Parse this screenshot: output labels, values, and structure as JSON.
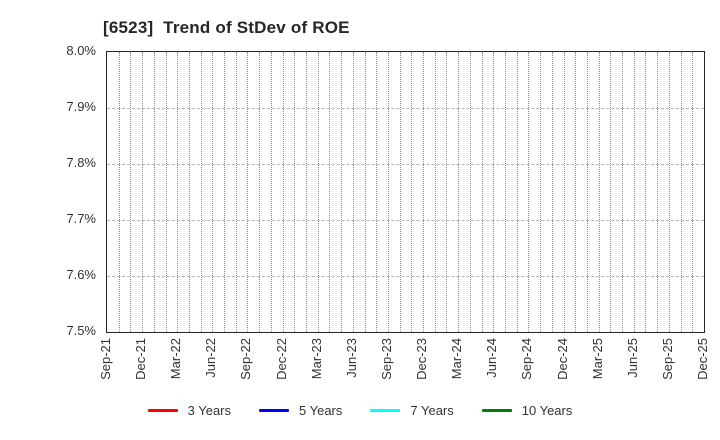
{
  "chart_data": {
    "type": "line",
    "title": "[6523]  Trend of StDev of ROE",
    "categories": [
      "Sep-21",
      "Dec-21",
      "Mar-22",
      "Jun-22",
      "Sep-22",
      "Dec-22",
      "Mar-23",
      "Jun-23",
      "Sep-23",
      "Dec-23",
      "Mar-24",
      "Jun-24",
      "Sep-24",
      "Dec-24",
      "Mar-25",
      "Jun-25",
      "Sep-25",
      "Dec-25"
    ],
    "minor_vertical_gridlines_per_label": 3,
    "ylim": [
      7.5,
      8.0
    ],
    "y_ticks": [
      {
        "value": 8.0,
        "label": "8.0%"
      },
      {
        "value": 7.9,
        "label": "7.9%"
      },
      {
        "value": 7.8,
        "label": "7.8%"
      },
      {
        "value": 7.7,
        "label": "7.7%"
      },
      {
        "value": 7.6,
        "label": "7.6%"
      },
      {
        "value": 7.5,
        "label": "7.5%"
      }
    ],
    "grid": true,
    "legend_position": "bottom",
    "series": [
      {
        "name": "3 Years",
        "color": "#ff0000",
        "values": []
      },
      {
        "name": "5 Years",
        "color": "#0000ff",
        "values": []
      },
      {
        "name": "7 Years",
        "color": "#00ffff",
        "values": []
      },
      {
        "name": "10 Years",
        "color": "#008000",
        "values": []
      }
    ]
  },
  "style_colors": {
    "title_text": "#262626",
    "tick_text": "#333333",
    "plot_border": "#262626",
    "vertical_gridline": "#8f8f8f",
    "horizontal_gridline": "#b4b4b4",
    "background": "#ffffff"
  }
}
